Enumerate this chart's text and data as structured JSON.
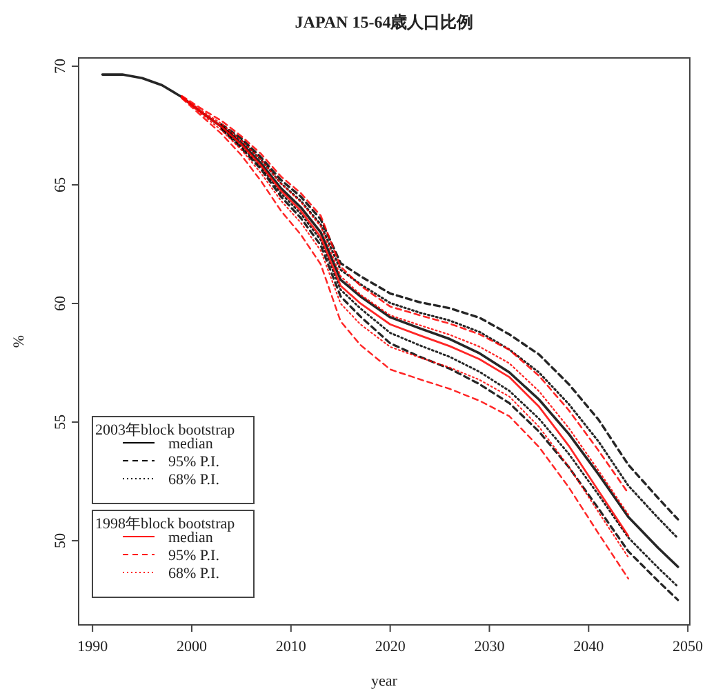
{
  "chart_data": {
    "type": "line",
    "title": "JAPAN 15-64歳人口比例",
    "xlabel": "year",
    "ylabel": "%",
    "xlim": [
      1988.6,
      2050.2
    ],
    "ylim": [
      46.45,
      70.35
    ],
    "xticks": [
      1990,
      2000,
      2010,
      2020,
      2030,
      2040,
      2050
    ],
    "yticks": [
      50,
      55,
      60,
      65,
      70
    ],
    "grid": false,
    "legend": "bottom left",
    "marker": "none",
    "annotations": [
      "2003年block bootstrap",
      "1998年block bootstrap"
    ],
    "series": [
      {
        "name": "median",
        "color": "#000000",
        "line_style": "solid",
        "x": [
          1991,
          1993,
          1995,
          1997,
          1999,
          2001,
          2003,
          2005,
          2007,
          2009,
          2011,
          2013,
          2015,
          2017,
          2020,
          2023,
          2026,
          2029,
          2032,
          2035,
          2038,
          2041,
          2044,
          2047,
          2049
        ],
        "values": [
          69.65,
          69.65,
          69.5,
          69.2,
          68.7,
          68.05,
          67.45,
          66.75,
          65.9,
          64.85,
          64.05,
          63.0,
          61.0,
          60.3,
          59.42,
          58.95,
          58.5,
          57.9,
          57.1,
          55.95,
          54.5,
          52.8,
          51.0,
          49.7,
          48.9
        ]
      },
      {
        "name": "95% P.I.",
        "color": "#000000",
        "line_style": "dashed",
        "x": [
          2003,
          2005,
          2007,
          2009,
          2011,
          2013,
          2015,
          2017,
          2020,
          2023,
          2026,
          2029,
          2032,
          2035,
          2038,
          2041,
          2044,
          2047,
          2049
        ],
        "values": [
          67.55,
          66.95,
          66.15,
          65.2,
          64.5,
          63.55,
          61.7,
          61.15,
          60.42,
          60.05,
          59.8,
          59.4,
          58.7,
          57.85,
          56.6,
          55.1,
          53.2,
          51.8,
          50.9
        ]
      },
      {
        "color": "#000000",
        "line_style": "dashed",
        "x": [
          2003,
          2005,
          2007,
          2009,
          2011,
          2013,
          2015,
          2017,
          2020,
          2023,
          2026,
          2029,
          2032,
          2035,
          2038,
          2041,
          2044,
          2047,
          2049
        ],
        "values": [
          67.35,
          66.55,
          65.65,
          64.5,
          63.6,
          62.45,
          60.3,
          59.45,
          58.32,
          57.75,
          57.25,
          56.6,
          55.8,
          54.6,
          53.1,
          51.35,
          49.55,
          48.3,
          47.5
        ]
      },
      {
        "name": "68% P.I.",
        "color": "#000000",
        "line_style": "dotted",
        "x": [
          2003,
          2005,
          2007,
          2009,
          2011,
          2013,
          2015,
          2017,
          2020,
          2023,
          2026,
          2029,
          2032,
          2035,
          2038,
          2041,
          2044,
          2047,
          2049
        ],
        "values": [
          67.51,
          66.87,
          66.05,
          65.06,
          64.32,
          63.33,
          61.42,
          60.81,
          60.02,
          59.61,
          59.28,
          58.8,
          58.06,
          57.09,
          55.76,
          54.18,
          52.32,
          50.96,
          50.1
        ]
      },
      {
        "color": "#000000",
        "line_style": "dotted",
        "x": [
          2003,
          2005,
          2007,
          2009,
          2011,
          2013,
          2015,
          2017,
          2020,
          2023,
          2026,
          2029,
          2032,
          2035,
          2038,
          2041,
          2044,
          2047,
          2049
        ],
        "values": [
          67.39,
          66.63,
          65.75,
          64.64,
          63.78,
          62.67,
          60.58,
          59.79,
          58.76,
          58.23,
          57.75,
          57.12,
          56.32,
          55.14,
          53.66,
          51.93,
          50.13,
          48.86,
          48.06
        ]
      },
      {
        "name": "median",
        "color": "#ff0000",
        "line_style": "solid",
        "x": [
          1999,
          2001,
          2003,
          2005,
          2007,
          2009,
          2011,
          2013,
          2015,
          2017,
          2020,
          2023,
          2026,
          2029,
          2032,
          2035,
          2038,
          2041,
          2044
        ],
        "values": [
          68.7,
          68.05,
          67.45,
          66.7,
          65.8,
          64.75,
          63.9,
          62.8,
          60.75,
          60.0,
          59.12,
          58.65,
          58.2,
          57.65,
          56.9,
          55.65,
          54.0,
          52.1,
          50.2
        ]
      },
      {
        "name": "95% P.I.",
        "color": "#ff0000",
        "line_style": "dashed",
        "x": [
          1999,
          2001,
          2003,
          2005,
          2007,
          2009,
          2011,
          2013,
          2015,
          2017,
          2020,
          2023,
          2026,
          2029,
          2032,
          2035,
          2038,
          2041,
          2044
        ],
        "values": [
          68.75,
          68.2,
          67.7,
          67.05,
          66.3,
          65.35,
          64.65,
          63.7,
          61.55,
          60.75,
          59.87,
          59.5,
          59.15,
          58.7,
          58.05,
          56.95,
          55.5,
          53.8,
          52.0
        ]
      },
      {
        "color": "#ff0000",
        "line_style": "dashed",
        "x": [
          1999,
          2001,
          2003,
          2005,
          2007,
          2009,
          2011,
          2013,
          2015,
          2017,
          2020,
          2023,
          2026,
          2029,
          2032,
          2035,
          2038,
          2041,
          2044
        ],
        "values": [
          68.65,
          67.9,
          67.15,
          66.25,
          65.15,
          63.9,
          62.9,
          61.65,
          59.25,
          58.25,
          57.22,
          56.8,
          56.4,
          55.9,
          55.25,
          53.95,
          52.25,
          50.3,
          48.4
        ]
      },
      {
        "name": "68% P.I.",
        "color": "#ff0000",
        "line_style": "dotted",
        "x": [
          1999,
          2001,
          2003,
          2005,
          2007,
          2009,
          2011,
          2013,
          2015,
          2017,
          2020,
          2023,
          2026,
          2029,
          2032,
          2035,
          2038,
          2041,
          2044
        ],
        "values": [
          68.72,
          68.12,
          67.57,
          66.87,
          66.05,
          65.05,
          64.27,
          63.25,
          61.15,
          60.37,
          59.5,
          59.08,
          58.68,
          58.18,
          57.48,
          56.3,
          54.75,
          52.95,
          51.1
        ]
      },
      {
        "color": "#ff0000",
        "line_style": "dotted",
        "x": [
          1999,
          2001,
          2003,
          2005,
          2007,
          2009,
          2011,
          2013,
          2015,
          2017,
          2020,
          2023,
          2026,
          2029,
          2032,
          2035,
          2038,
          2041,
          2044
        ],
        "values": [
          68.68,
          67.98,
          67.3,
          66.48,
          65.48,
          64.33,
          63.4,
          62.23,
          60.0,
          59.12,
          58.17,
          57.72,
          57.3,
          56.78,
          56.08,
          54.8,
          53.12,
          51.2,
          49.3
        ]
      }
    ]
  }
}
